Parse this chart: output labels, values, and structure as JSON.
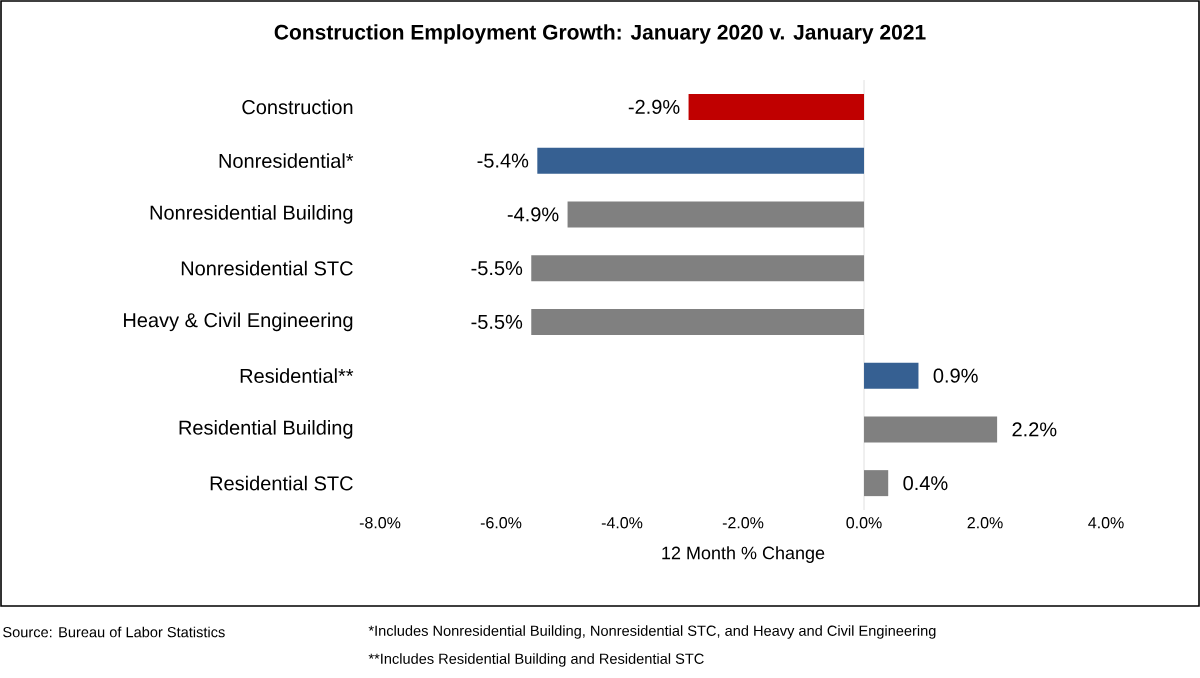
{
  "chart_data": {
    "type": "bar",
    "orientation": "horizontal",
    "title": "Construction Employment Growth: January 2020 v. January 2021",
    "xlabel": "12 Month % Change",
    "categories": [
      "Construction",
      "Nonresidential*",
      "Nonresidential Building",
      "Nonresidential STC",
      "Heavy & Civil Engineering",
      "Residential**",
      "Residential Building",
      "Residential STC"
    ],
    "values": [
      -2.9,
      -5.4,
      -4.9,
      -5.5,
      -5.5,
      0.9,
      2.2,
      0.4
    ],
    "value_labels": [
      "-2.9%",
      "-5.4%",
      "-4.9%",
      "-5.5%",
      "-5.5%",
      "0.9%",
      "2.2%",
      "0.4%"
    ],
    "colors": [
      "#c00000",
      "#366092",
      "#808080",
      "#808080",
      "#808080",
      "#366092",
      "#808080",
      "#808080"
    ],
    "xlim": [
      -8,
      4
    ],
    "xticks": [
      {
        "value": -8,
        "label": "-8.0%"
      },
      {
        "value": -6,
        "label": "-6.0%"
      },
      {
        "value": -4,
        "label": "-4.0%"
      },
      {
        "value": -2,
        "label": "-2.0%"
      },
      {
        "value": 0,
        "label": "0.0%"
      },
      {
        "value": 2,
        "label": "2.0%"
      },
      {
        "value": 4,
        "label": "4.0%"
      }
    ],
    "annotations": [
      "Source:  Bureau of Labor Statistics",
      "*Includes Nonresidential Building, Nonresidential STC, and Heavy and Civil Engineering",
      "**Includes Residential Building and Residential STC"
    ]
  }
}
